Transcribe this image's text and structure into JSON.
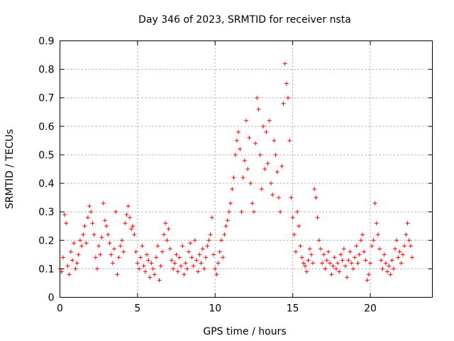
{
  "chart_data": {
    "type": "scatter",
    "title": "Day 346 of 2023, SRMTID for receiver nsta",
    "xlabel": "GPS time / hours",
    "ylabel": "SRMTID / TECUs",
    "xlim": [
      0,
      24
    ],
    "ylim": [
      0,
      0.9
    ],
    "x_ticks": [
      0,
      5,
      10,
      15,
      20
    ],
    "x_tick_labels": [
      "0",
      "5",
      "10",
      "15",
      "20"
    ],
    "y_ticks": [
      0,
      0.1,
      0.2,
      0.3,
      0.4,
      0.5,
      0.6,
      0.7,
      0.8,
      0.9
    ],
    "y_tick_labels": [
      "0",
      "0.1",
      "0.2",
      "0.3",
      "0.4",
      "0.5",
      "0.6",
      "0.7",
      "0.8",
      "0.9"
    ],
    "grid": true,
    "marker": "+",
    "color": "#ff0000",
    "series": [
      {
        "name": "SRMTID",
        "x": [
          0.0,
          0.1,
          0.2,
          0.3,
          0.4,
          0.5,
          0.6,
          0.7,
          0.8,
          0.9,
          1.0,
          1.1,
          1.2,
          1.3,
          1.4,
          1.5,
          1.6,
          1.7,
          1.8,
          1.9,
          2.0,
          2.1,
          2.2,
          2.3,
          2.4,
          2.5,
          2.6,
          2.7,
          2.8,
          2.9,
          3.0,
          3.1,
          3.2,
          3.3,
          3.4,
          3.5,
          3.6,
          3.7,
          3.8,
          3.9,
          4.0,
          4.1,
          4.2,
          4.3,
          4.4,
          4.5,
          4.6,
          4.7,
          4.8,
          4.9,
          5.0,
          5.1,
          5.2,
          5.3,
          5.4,
          5.5,
          5.6,
          5.7,
          5.8,
          5.9,
          6.0,
          6.1,
          6.2,
          6.3,
          6.4,
          6.5,
          6.6,
          6.7,
          6.8,
          6.9,
          7.0,
          7.1,
          7.2,
          7.3,
          7.4,
          7.5,
          7.6,
          7.7,
          7.8,
          7.9,
          8.0,
          8.1,
          8.2,
          8.3,
          8.4,
          8.5,
          8.6,
          8.7,
          8.8,
          8.9,
          9.0,
          9.1,
          9.2,
          9.3,
          9.4,
          9.5,
          9.6,
          9.7,
          9.8,
          9.9,
          10.0,
          10.1,
          10.2,
          10.3,
          10.4,
          10.5,
          10.6,
          10.7,
          10.8,
          10.9,
          11.0,
          11.1,
          11.2,
          11.3,
          11.4,
          11.5,
          11.6,
          11.7,
          11.8,
          11.9,
          12.0,
          12.1,
          12.2,
          12.3,
          12.4,
          12.5,
          12.6,
          12.7,
          12.8,
          12.9,
          13.0,
          13.1,
          13.2,
          13.3,
          13.4,
          13.5,
          13.6,
          13.7,
          13.8,
          13.9,
          14.0,
          14.1,
          14.2,
          14.3,
          14.4,
          14.5,
          14.6,
          14.7,
          14.8,
          14.9,
          15.0,
          15.1,
          15.2,
          15.3,
          15.4,
          15.5,
          15.6,
          15.7,
          15.8,
          15.9,
          16.0,
          16.1,
          16.2,
          16.3,
          16.4,
          16.5,
          16.6,
          16.7,
          16.8,
          16.9,
          17.0,
          17.1,
          17.2,
          17.3,
          17.4,
          17.5,
          17.6,
          17.7,
          17.8,
          17.9,
          18.0,
          18.1,
          18.2,
          18.3,
          18.4,
          18.5,
          18.6,
          18.7,
          18.8,
          18.9,
          19.0,
          19.1,
          19.2,
          19.3,
          19.4,
          19.5,
          19.6,
          19.7,
          19.8,
          19.9,
          20.0,
          20.1,
          20.2,
          20.3,
          20.4,
          20.5,
          20.6,
          20.7,
          20.8,
          20.9,
          21.0,
          21.1,
          21.2,
          21.3,
          21.4,
          21.5,
          21.6,
          21.7,
          21.8,
          21.9,
          22.0,
          22.1,
          22.2,
          22.3,
          22.4,
          22.5,
          22.6,
          22.7
        ],
        "y": [
          0.1,
          0.09,
          0.14,
          0.29,
          0.26,
          0.11,
          0.08,
          0.16,
          0.13,
          0.19,
          0.1,
          0.12,
          0.15,
          0.2,
          0.18,
          0.22,
          0.25,
          0.19,
          0.28,
          0.32,
          0.3,
          0.26,
          0.22,
          0.14,
          0.1,
          0.18,
          0.15,
          0.21,
          0.33,
          0.27,
          0.25,
          0.22,
          0.19,
          0.15,
          0.12,
          0.17,
          0.3,
          0.08,
          0.14,
          0.18,
          0.2,
          0.16,
          0.26,
          0.29,
          0.32,
          0.28,
          0.24,
          0.25,
          0.22,
          0.16,
          0.12,
          0.1,
          0.14,
          0.18,
          0.11,
          0.09,
          0.15,
          0.13,
          0.07,
          0.12,
          0.1,
          0.08,
          0.14,
          0.18,
          0.06,
          0.11,
          0.16,
          0.22,
          0.26,
          0.2,
          0.24,
          0.17,
          0.13,
          0.1,
          0.12,
          0.15,
          0.09,
          0.14,
          0.11,
          0.18,
          0.08,
          0.12,
          0.1,
          0.16,
          0.19,
          0.14,
          0.11,
          0.2,
          0.13,
          0.09,
          0.15,
          0.12,
          0.17,
          0.1,
          0.14,
          0.18,
          0.2,
          0.22,
          0.28,
          0.15,
          0.1,
          0.08,
          0.12,
          0.16,
          0.2,
          0.14,
          0.22,
          0.25,
          0.27,
          0.3,
          0.33,
          0.38,
          0.42,
          0.5,
          0.55,
          0.58,
          0.52,
          0.3,
          0.42,
          0.48,
          0.62,
          0.45,
          0.56,
          0.4,
          0.33,
          0.3,
          0.54,
          0.7,
          0.66,
          0.5,
          0.38,
          0.6,
          0.45,
          0.58,
          0.47,
          0.62,
          0.4,
          0.36,
          0.55,
          0.5,
          0.44,
          0.35,
          0.3,
          0.46,
          0.68,
          0.82,
          0.75,
          0.7,
          0.55,
          0.35,
          0.28,
          0.22,
          0.16,
          0.3,
          0.25,
          0.18,
          0.14,
          0.12,
          0.11,
          0.09,
          0.13,
          0.17,
          0.15,
          0.12,
          0.38,
          0.35,
          0.28,
          0.2,
          0.17,
          0.12,
          0.15,
          0.1,
          0.13,
          0.16,
          0.12,
          0.08,
          0.11,
          0.14,
          0.1,
          0.12,
          0.09,
          0.15,
          0.13,
          0.17,
          0.11,
          0.07,
          0.13,
          0.16,
          0.12,
          0.1,
          0.14,
          0.18,
          0.12,
          0.15,
          0.2,
          0.22,
          0.16,
          0.13,
          0.06,
          0.08,
          0.12,
          0.18,
          0.2,
          0.33,
          0.26,
          0.22,
          0.17,
          0.13,
          0.1,
          0.15,
          0.12,
          0.09,
          0.11,
          0.08,
          0.13,
          0.1,
          0.17,
          0.2,
          0.14,
          0.16,
          0.12,
          0.15,
          0.18,
          0.22,
          0.26,
          0.2,
          0.18,
          0.14
        ]
      }
    ]
  }
}
